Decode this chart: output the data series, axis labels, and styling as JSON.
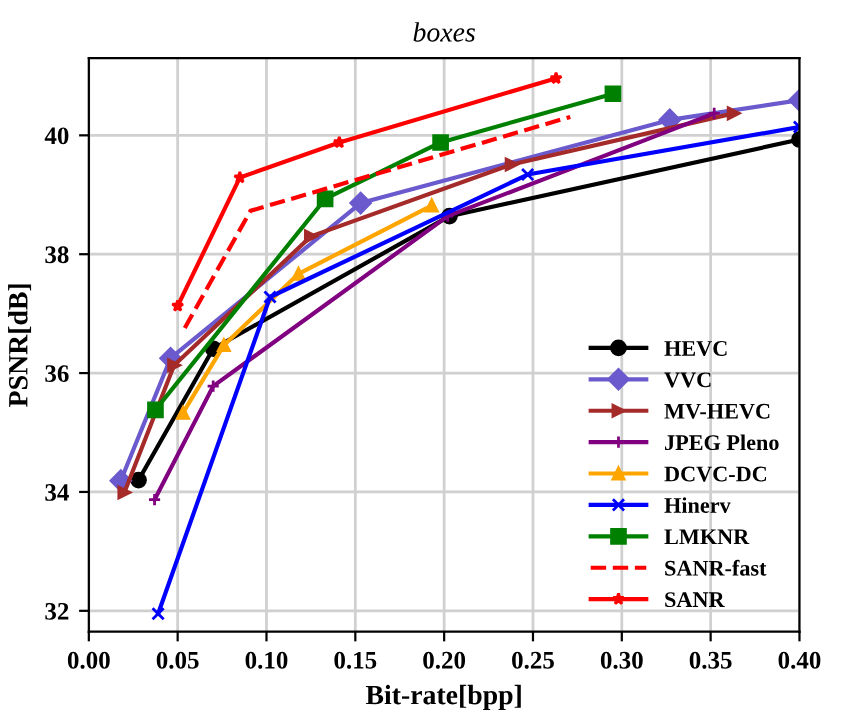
{
  "chart_data": {
    "type": "line",
    "title": "boxes",
    "xlabel": "Bit-rate[bpp]",
    "ylabel": "PSNR[dB]",
    "xlim": [
      0,
      0.4
    ],
    "xticks": [
      {
        "value": 0,
        "label": "0.00"
      },
      {
        "value": 0.05,
        "label": "0.05"
      },
      {
        "value": 0.1,
        "label": "0.10"
      },
      {
        "value": 0.15,
        "label": "0.15"
      },
      {
        "value": 0.2,
        "label": "0.20"
      },
      {
        "value": 0.25,
        "label": "0.25"
      },
      {
        "value": 0.3,
        "label": "0.30"
      },
      {
        "value": 0.35,
        "label": "0.35"
      },
      {
        "value": 0.4,
        "label": "0.40"
      }
    ],
    "ylim": [
      31.65,
      41.3
    ],
    "yticks": [
      32,
      34,
      36,
      38,
      40
    ],
    "grid": true,
    "legend": "bottom right",
    "line_style": "solid",
    "series": [
      {
        "name": "HEVC",
        "color": "#000000",
        "marker": "circle",
        "x": [
          0.028,
          0.07,
          0.203,
          0.4
        ],
        "values": [
          34.2,
          36.41,
          38.64,
          39.93
        ]
      },
      {
        "name": "VVC",
        "color": "#6a5acd",
        "marker": "diamond",
        "x": [
          0.018,
          0.046,
          0.153,
          0.327,
          0.4
        ],
        "values": [
          34.19,
          36.25,
          38.86,
          40.26,
          40.59
        ]
      },
      {
        "name": "MV-HEVC",
        "color": "#a52a2a",
        "marker": "triangle_right",
        "x": [
          0.02,
          0.048,
          0.125,
          0.238,
          0.363
        ],
        "values": [
          33.99,
          36.13,
          38.3,
          39.51,
          40.37
        ]
      },
      {
        "name": "JPEG Pleno",
        "color": "#800080",
        "marker": "plus",
        "x": [
          0.037,
          0.07,
          0.202,
          0.352
        ],
        "values": [
          33.87,
          35.78,
          38.64,
          40.37
        ]
      },
      {
        "name": "DCVC-DC",
        "color": "#ffa500",
        "marker": "triangle",
        "x": [
          0.053,
          0.076,
          0.118,
          0.193
        ],
        "values": [
          35.33,
          36.47,
          37.67,
          38.82
        ]
      },
      {
        "name": "Hinerv",
        "color": "#0000ff",
        "marker": "x",
        "x": [
          0.039,
          0.102,
          0.247,
          0.4
        ],
        "values": [
          31.95,
          37.28,
          39.34,
          40.14
        ]
      },
      {
        "name": "LMKNR",
        "color": "#008000",
        "marker": "square",
        "x": [
          0.0375,
          0.133,
          0.198,
          0.295
        ],
        "values": [
          35.38,
          38.93,
          39.88,
          40.7
        ]
      },
      {
        "name": "SANR-fast",
        "color": "#ff0000",
        "marker": "none",
        "line_style": "dashed",
        "x": [
          0.054,
          0.091,
          0.271
        ],
        "values": [
          36.76,
          38.73,
          40.31
        ]
      },
      {
        "name": "SANR",
        "color": "#ff0000",
        "marker": "star",
        "x": [
          0.05,
          0.085,
          0.141,
          0.263
        ],
        "values": [
          37.13,
          39.29,
          39.88,
          40.96
        ]
      }
    ]
  }
}
